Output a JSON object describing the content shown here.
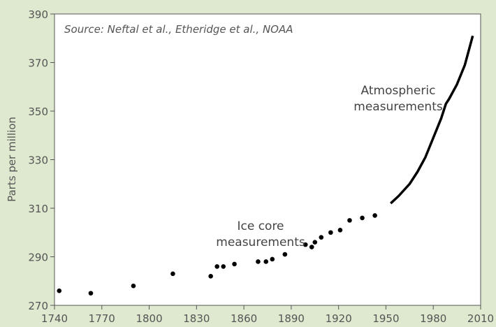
{
  "chart_data": {
    "type": "scatter",
    "subtitle": "Source: Neftal et al., Etheridge et al., NOAA",
    "y_label": "Parts per million",
    "annotations": [
      [
        "Atmospheric",
        "measurements"
      ],
      [
        "Ice core",
        "measurements"
      ]
    ],
    "xlim": [
      1740,
      2010
    ],
    "ylim": [
      270,
      390
    ],
    "xticks": [
      1740,
      1770,
      1800,
      1830,
      1860,
      1890,
      1920,
      1950,
      1980,
      2010
    ],
    "yticks": [
      270,
      290,
      310,
      330,
      350,
      370,
      390
    ],
    "series": [
      {
        "type": "scatter",
        "color": "#000000",
        "x": [
          1743,
          1763,
          1790,
          1815,
          1839,
          1843,
          1847,
          1854,
          1869,
          1874,
          1878,
          1886,
          1899,
          1903,
          1905,
          1909,
          1915,
          1921,
          1927,
          1935,
          1943
        ],
        "values": [
          276,
          275,
          278,
          283,
          282,
          286,
          286,
          287,
          288,
          288,
          289,
          291,
          295,
          294,
          296,
          298,
          300,
          301,
          305,
          306,
          307
        ]
      },
      {
        "type": "line",
        "color": "#000000",
        "x": [
          1953,
          1958,
          1965,
          1970,
          1975,
          1980,
          1985,
          1988,
          1990,
          1995,
          2000,
          2005
        ],
        "values": [
          312,
          315,
          320,
          325,
          331,
          339,
          347,
          353,
          355,
          361,
          369,
          381
        ]
      }
    ]
  }
}
